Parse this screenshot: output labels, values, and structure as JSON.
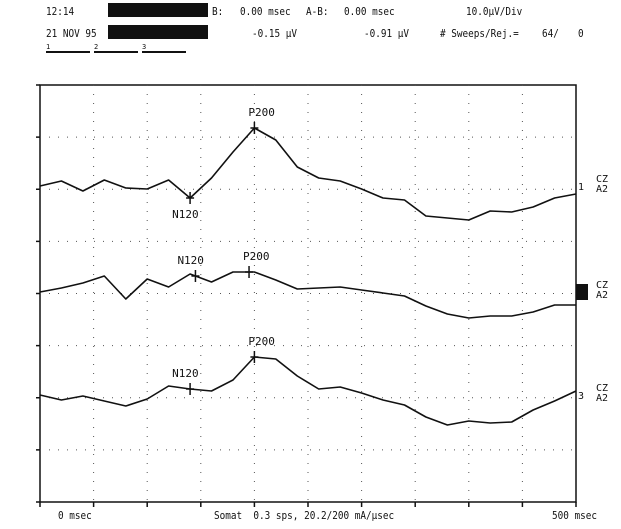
{
  "header": {
    "time": "12:14",
    "date": "21 NOV 95",
    "cursor_b_label": "B:",
    "cursor_b_time": "0.00 msec",
    "cursor_ab_label": "A-B:",
    "cursor_ab_time": "0.00 msec",
    "sensitivity": "10.0µV/Div",
    "cursor_b_amp": "-0.15 µV",
    "cursor_ab_amp": "-0.91 µV",
    "sweeps_label": "# Sweeps/Rej.=",
    "sweeps_value": "64/",
    "rejects_value": "0",
    "tabs": [
      "1",
      "2",
      "3"
    ]
  },
  "traces": [
    {
      "id": "1",
      "derivation_top": "CZ",
      "derivation_bottom": "A2",
      "peaks": [
        {
          "label": "P200",
          "time_ms": 200
        },
        {
          "label": "N120",
          "time_ms": 140
        }
      ]
    },
    {
      "id": "2",
      "derivation_top": "CZ",
      "derivation_bottom": "A2",
      "peaks": [
        {
          "label": "N120",
          "time_ms": 145
        },
        {
          "label": "P200",
          "time_ms": 195
        }
      ]
    },
    {
      "id": "3",
      "derivation_top": "CZ",
      "derivation_bottom": "A2",
      "peaks": [
        {
          "label": "N120",
          "time_ms": 140
        },
        {
          "label": "P200",
          "time_ms": 200
        }
      ]
    }
  ],
  "footer": {
    "x_start": "0 msec",
    "stimulus": "Somat  0.3 sps, 20.2/200 mA/µsec",
    "x_end": "500 msec"
  },
  "chart_data": {
    "type": "line",
    "x_unit": "msec",
    "x_range": [
      0,
      500
    ],
    "y_scale": "10.0µV/Div",
    "grid": true,
    "x": [
      0,
      20,
      40,
      60,
      80,
      100,
      120,
      140,
      160,
      180,
      200,
      220,
      240,
      260,
      280,
      300,
      320,
      340,
      360,
      380,
      400,
      420,
      440,
      460,
      480,
      500
    ],
    "series": [
      {
        "name": "1",
        "values": [
          0,
          0.5,
          -0.5,
          0.6,
          -0.2,
          -0.3,
          0.6,
          -1.2,
          0.8,
          3.4,
          5.8,
          4.6,
          1.9,
          0.8,
          0.5,
          -0.3,
          -1.2,
          -1.4,
          -3.0,
          -3.2,
          -3.4,
          -2.5,
          -2.6,
          -2.1,
          -1.2,
          -0.8
        ]
      },
      {
        "name": "2",
        "values": [
          0,
          0.4,
          0.9,
          1.6,
          -0.7,
          1.3,
          0.5,
          1.8,
          1.0,
          2.0,
          2.0,
          1.2,
          0.3,
          0.4,
          0.5,
          0.2,
          -0.1,
          -0.4,
          -1.4,
          -2.2,
          -2.6,
          -2.4,
          -2.4,
          -2.0,
          -1.3,
          -1.3
        ]
      },
      {
        "name": "3",
        "values": [
          0,
          -0.5,
          -0.1,
          -0.6,
          -1.1,
          -0.4,
          0.9,
          0.6,
          0.4,
          1.5,
          3.8,
          3.6,
          1.9,
          0.6,
          0.8,
          0.2,
          -0.5,
          -1.0,
          -2.2,
          -3.0,
          -2.6,
          -2.8,
          -2.7,
          -1.5,
          -0.6,
          0.4
        ]
      }
    ]
  }
}
